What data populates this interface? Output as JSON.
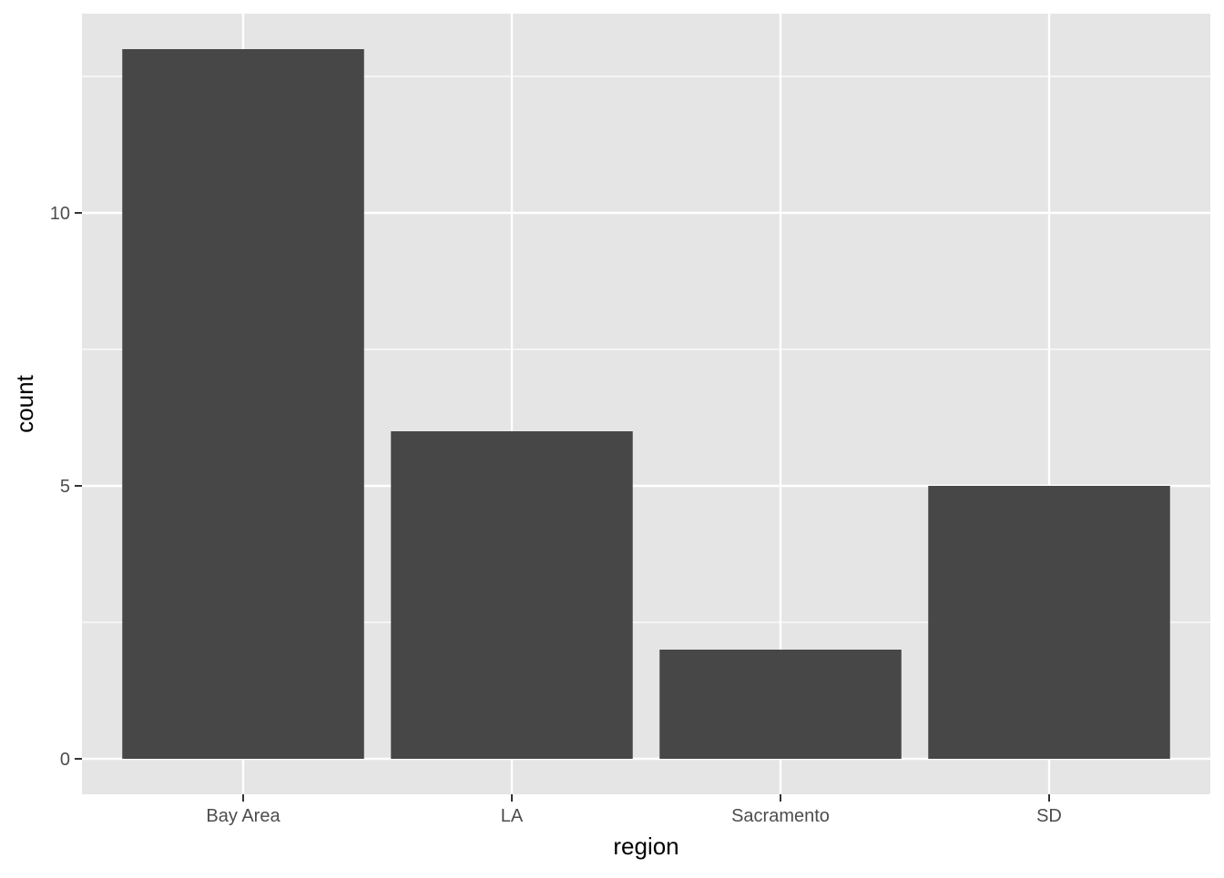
{
  "chart_data": {
    "type": "bar",
    "categories": [
      "Bay Area",
      "LA",
      "Sacramento",
      "SD"
    ],
    "values": [
      13,
      6,
      2,
      5
    ],
    "xlabel": "region",
    "ylabel": "count",
    "ylim": [
      -0.65,
      13.65
    ],
    "yticks": [
      0,
      5,
      10
    ],
    "grid": true,
    "legend": "none",
    "colors": {
      "panel_background": "#e5e5e5",
      "grid_line": "#ffffff",
      "bar_fill": "#474747",
      "tick_mark": "#333333",
      "tick_text": "#4d4d4d",
      "axis_title_text": "#000000"
    }
  }
}
